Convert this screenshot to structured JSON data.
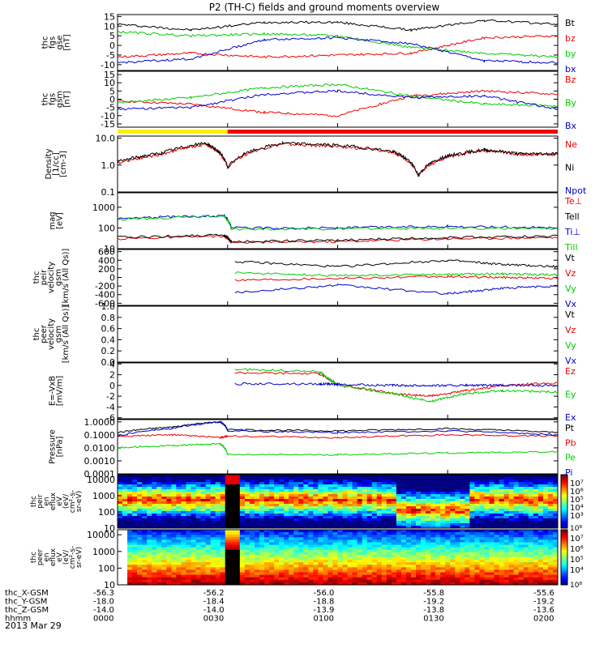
{
  "title": "P2 (TH-C) fields and ground moments overview",
  "date": "2013 Mar 29",
  "x_axis_rows": [
    {
      "label": "thc_X-GSM",
      "ticks": [
        "-56.3",
        "-56.2",
        "-56.0",
        "-55.8",
        "-55.6"
      ]
    },
    {
      "label": "thc_Y-GSM",
      "ticks": [
        "-18.0",
        "-18.4",
        "-18.8",
        "-19.2",
        "-19.2"
      ]
    },
    {
      "label": "thc_Z-GSM",
      "ticks": [
        "-14.0",
        "-14.0",
        "-13.9",
        "-13.8",
        "-13.6"
      ]
    },
    {
      "label": "hhmm",
      "ticks": [
        "0000",
        "0030",
        "0100",
        "0130",
        "0200"
      ]
    }
  ],
  "chart_data": [
    {
      "type": "line",
      "panel": "fgs_gse",
      "ylabel": [
        "thc",
        "fgs",
        "gse",
        "[nT]"
      ],
      "yticks": [
        "15",
        "10",
        "5",
        "0",
        "-5",
        "-10"
      ],
      "ylim": [
        -13,
        16
      ],
      "series": [
        {
          "name": "Bt",
          "color": "#000000",
          "x": [
            0,
            20,
            40,
            60,
            80,
            100,
            120
          ],
          "y": [
            11,
            8,
            12,
            12,
            8,
            13,
            11
          ]
        },
        {
          "name": "bz",
          "color": "#ee0000",
          "x": [
            0,
            20,
            40,
            60,
            80,
            100,
            120
          ],
          "y": [
            -6,
            -4,
            -6,
            -5,
            -4,
            4,
            5
          ]
        },
        {
          "name": "by",
          "color": "#00cc00",
          "x": [
            0,
            20,
            40,
            60,
            80,
            100,
            120
          ],
          "y": [
            7,
            5,
            6,
            5,
            -1,
            -4,
            -6
          ]
        },
        {
          "name": "bx",
          "color": "#0000cc",
          "x": [
            0,
            20,
            40,
            60,
            80,
            100,
            120
          ],
          "y": [
            -9,
            -7,
            3,
            4,
            1,
            -8,
            -9
          ]
        }
      ]
    },
    {
      "type": "line",
      "panel": "fgs_gsm",
      "ylabel": [
        "thc",
        "fgs",
        "gsm",
        "[nT]"
      ],
      "yticks": [
        "15",
        "10",
        "5",
        "0",
        "-5",
        "-10",
        "-15"
      ],
      "ylim": [
        -17,
        17
      ],
      "series": [
        {
          "name": "Bz",
          "color": "#ee0000",
          "x": [
            0,
            20,
            40,
            60,
            80,
            100,
            120
          ],
          "y": [
            -1,
            -3,
            -8,
            -10,
            2,
            5,
            3
          ]
        },
        {
          "name": "By",
          "color": "#00cc00",
          "x": [
            0,
            20,
            40,
            60,
            80,
            100,
            120
          ],
          "y": [
            -2,
            1,
            7,
            9,
            2,
            -3,
            -4
          ]
        },
        {
          "name": "Bx",
          "color": "#0000cc",
          "x": [
            0,
            20,
            40,
            60,
            80,
            100,
            120
          ],
          "y": [
            -6,
            -5,
            3,
            5,
            1,
            2,
            -6
          ]
        }
      ]
    },
    {
      "type": "line",
      "panel": "density",
      "ylabel": [
        "Density",
        "[1/cc]",
        "[cm-3]"
      ],
      "yticks": [
        "10.0",
        "1.0",
        "0.1"
      ],
      "ylim": [
        0.1,
        12
      ],
      "log": true,
      "series": [
        {
          "name": "Ne",
          "color": "#ee0000",
          "x": [
            0,
            12,
            24,
            30,
            45,
            60,
            75,
            82,
            90,
            100,
            110,
            120
          ],
          "y": [
            1.2,
            2.5,
            6,
            0.8,
            6,
            5,
            3,
            0.4,
            2,
            3.5,
            2.5,
            2.5
          ]
        },
        {
          "name": "Ni",
          "color": "#000000",
          "x": [
            0,
            12,
            24,
            30,
            45,
            60,
            75,
            82,
            90,
            100,
            110,
            120
          ],
          "y": [
            1.3,
            2.8,
            6.5,
            0.8,
            6.5,
            5.5,
            3.2,
            0.4,
            2.2,
            3.7,
            2.6,
            2.7
          ]
        },
        {
          "name": "Npot",
          "color": "#0000cc",
          "x": [],
          "y": []
        }
      ]
    },
    {
      "type": "line",
      "panel": "temperature",
      "ylabel": [
        "mag",
        "[eV]"
      ],
      "yticks": [
        "1000",
        "100",
        "10"
      ],
      "ylim": [
        10,
        5000
      ],
      "log": true,
      "series": [
        {
          "name": "Te⊥",
          "color": "#ee0000",
          "x": [
            0,
            29,
            31,
            60,
            90,
            120
          ],
          "y": [
            30,
            40,
            20,
            22,
            30,
            35
          ]
        },
        {
          "name": "Tell",
          "color": "#000000",
          "x": [
            0,
            29,
            31,
            60,
            90,
            120
          ],
          "y": [
            35,
            45,
            22,
            25,
            35,
            40
          ]
        },
        {
          "name": "Ti⊥",
          "color": "#0000cc",
          "x": [
            0,
            29,
            31,
            60,
            90,
            120
          ],
          "y": [
            280,
            400,
            100,
            100,
            120,
            100
          ]
        },
        {
          "name": "Till",
          "color": "#00cc00",
          "x": [
            0,
            29,
            31,
            60,
            90,
            120
          ],
          "y": [
            250,
            380,
            90,
            90,
            100,
            90
          ]
        }
      ]
    },
    {
      "type": "line",
      "panel": "peir_velocity",
      "ylabel": [
        "thc",
        "peir",
        "velocity",
        "gsm",
        "[km/s (All Qs)]"
      ],
      "yticks": [
        "600",
        "400",
        "200",
        "0",
        "-200",
        "-400",
        "-600"
      ],
      "ylim": [
        -650,
        650
      ],
      "series": [
        {
          "name": "Vt",
          "color": "#000000",
          "x": [
            32,
            60,
            90,
            105,
            120
          ],
          "y": [
            370,
            250,
            400,
            300,
            250
          ]
        },
        {
          "name": "Vz",
          "color": "#ee0000",
          "x": [
            32,
            60,
            90,
            105,
            120
          ],
          "y": [
            -60,
            -20,
            20,
            0,
            -20
          ]
        },
        {
          "name": "Vy",
          "color": "#00cc00",
          "x": [
            32,
            60,
            90,
            105,
            120
          ],
          "y": [
            110,
            40,
            80,
            80,
            60
          ]
        },
        {
          "name": "Vx",
          "color": "#0000cc",
          "x": [
            32,
            60,
            90,
            105,
            120
          ],
          "y": [
            -350,
            -180,
            -380,
            -250,
            -200
          ]
        }
      ]
    },
    {
      "type": "line",
      "panel": "peer_velocity",
      "ylabel": [
        "thc",
        "peer",
        "velocity",
        "gsm",
        "[km/s (All Qs)]"
      ],
      "yticks": [
        "1.0",
        "0.8",
        "0.6",
        "0.4",
        "0.2",
        "0.0"
      ],
      "ylim": [
        0,
        1
      ],
      "series": [
        {
          "name": "Vt",
          "color": "#000000",
          "x": [],
          "y": []
        },
        {
          "name": "Vz",
          "color": "#ee0000",
          "x": [],
          "y": []
        },
        {
          "name": "Vy",
          "color": "#00cc00",
          "x": [],
          "y": []
        },
        {
          "name": "Vx",
          "color": "#0000cc",
          "x": [],
          "y": []
        }
      ]
    },
    {
      "type": "line",
      "panel": "efield",
      "ylabel": [
        "E=-VxB",
        "[mV/m]"
      ],
      "yticks": [
        "4",
        "2",
        "0",
        "-2",
        "-4",
        "-6"
      ],
      "ylim": [
        -6.2,
        4.2
      ],
      "series": [
        {
          "name": "Ez",
          "color": "#ee0000",
          "x": [
            32,
            55,
            60,
            75,
            85,
            95,
            105,
            120
          ],
          "y": [
            2.4,
            2.2,
            0.2,
            -1.5,
            -2,
            -1,
            0,
            0.5
          ]
        },
        {
          "name": "Ey",
          "color": "#00cc00",
          "x": [
            32,
            55,
            60,
            75,
            85,
            95,
            105,
            120
          ],
          "y": [
            3,
            2.6,
            0,
            -1.5,
            -3,
            -1.5,
            -1,
            -1.2
          ]
        },
        {
          "name": "Ex",
          "color": "#0000cc",
          "x": [
            32,
            55,
            60,
            75,
            85,
            95,
            105,
            120
          ],
          "y": [
            0.3,
            0.3,
            0.2,
            0,
            0,
            0,
            0,
            0
          ]
        }
      ]
    },
    {
      "type": "line",
      "panel": "pressure",
      "ylabel": [
        "Pressure",
        "[nPa]"
      ],
      "yticks": [
        "1.0000",
        "0.1000",
        "0.0100",
        "0.0010",
        "0.0001"
      ],
      "ylim": [
        0.0001,
        1.5
      ],
      "log": true,
      "series": [
        {
          "name": "Pt",
          "color": "#000000",
          "x": [
            0,
            15,
            28,
            30,
            60,
            90,
            120
          ],
          "y": [
            0.15,
            0.4,
            1,
            0.25,
            0.2,
            0.3,
            0.15
          ]
        },
        {
          "name": "Pb",
          "color": "#ee0000",
          "x": [
            0,
            15,
            28,
            30,
            60,
            90,
            120
          ],
          "y": [
            0.08,
            0.1,
            0.06,
            0.08,
            0.06,
            0.1,
            0.08
          ]
        },
        {
          "name": "Pe",
          "color": "#00cc00",
          "x": [
            0,
            15,
            28,
            30,
            60,
            90,
            120
          ],
          "y": [
            0.01,
            0.015,
            0.02,
            0.003,
            0.003,
            0.004,
            0.005
          ]
        },
        {
          "name": "Pi",
          "color": "#0000cc",
          "x": [
            0,
            15,
            28,
            30,
            60,
            90,
            120
          ],
          "y": [
            0.08,
            0.3,
            1,
            0.2,
            0.15,
            0.2,
            0.1
          ]
        }
      ]
    },
    {
      "type": "heatmap",
      "panel": "peir_spectrogram",
      "ylabel": [
        "thc",
        "peir",
        "en",
        "eflux",
        "eV",
        "(eV/",
        "cm²-s-",
        "sr-eV)"
      ],
      "yticks": [
        "10000",
        "1000",
        "100",
        "10"
      ],
      "colorbar_ticks": [
        "10⁷",
        "10⁶",
        "10⁵",
        "10⁴",
        "10³"
      ],
      "colorbar_top_cut": "10⁸"
    },
    {
      "type": "heatmap",
      "panel": "peer_spectrogram",
      "ylabel": [
        "thc",
        "peer",
        "en",
        "eflux",
        "eV",
        "(eV/",
        "cm²-s-",
        "sr-eV)"
      ],
      "yticks": [
        "10000",
        "1000",
        "100",
        "10"
      ],
      "colorbar_ticks": [
        "10⁷",
        "10⁶",
        "10⁵",
        "10⁴"
      ],
      "colorbar_top_cut": "10⁸"
    }
  ],
  "colors": {
    "red": "#ee0000",
    "green": "#00cc00",
    "blue": "#0000cc",
    "yellow": "#ffee00"
  }
}
